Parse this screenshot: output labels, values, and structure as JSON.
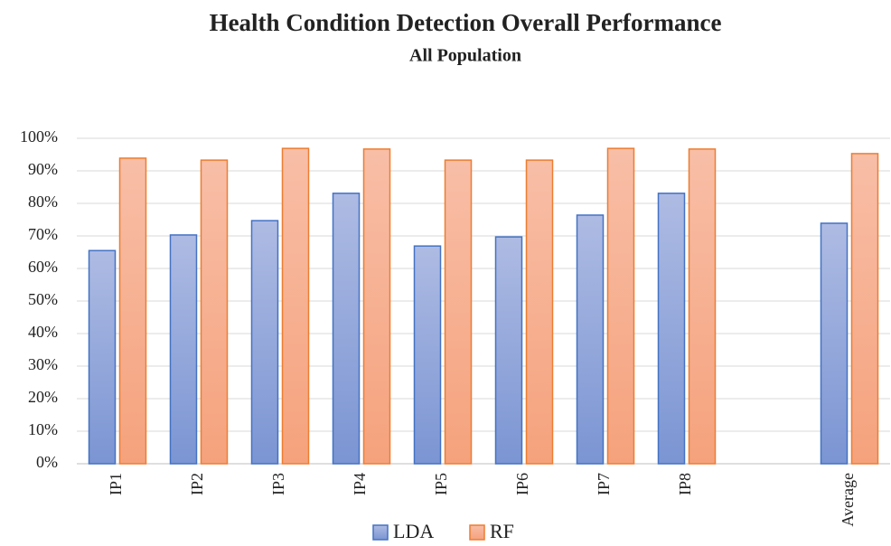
{
  "chart_data": {
    "type": "bar",
    "title": "Health Condition Detection Overall Performance",
    "subtitle": "All Population",
    "categories": [
      "IP1",
      "IP2",
      "IP3",
      "IP4",
      "IP5",
      "IP6",
      "IP7",
      "IP8",
      null,
      "Average"
    ],
    "series": [
      {
        "name": "LDA",
        "color": "#4472c4",
        "values": [
          65.5,
          70.3,
          74.7,
          83.1,
          66.9,
          69.7,
          76.4,
          83.1,
          null,
          73.9
        ]
      },
      {
        "name": "RF",
        "color": "#ed7d31",
        "values": [
          93.9,
          93.3,
          96.9,
          96.7,
          93.3,
          93.3,
          96.9,
          96.7,
          null,
          95.3
        ]
      }
    ],
    "ylim": [
      0,
      100
    ],
    "yticks": [
      {
        "value": 0,
        "label": "0%"
      },
      {
        "value": 10,
        "label": "10%"
      },
      {
        "value": 20,
        "label": "20%"
      },
      {
        "value": 30,
        "label": "30%"
      },
      {
        "value": 40,
        "label": "40%"
      },
      {
        "value": 50,
        "label": "50%"
      },
      {
        "value": 60,
        "label": "60%"
      },
      {
        "value": 70,
        "label": "70%"
      },
      {
        "value": 80,
        "label": "80%"
      },
      {
        "value": 90,
        "label": "90%"
      },
      {
        "value": 100,
        "label": "100%"
      }
    ],
    "grid": true,
    "legend": "bottom"
  }
}
